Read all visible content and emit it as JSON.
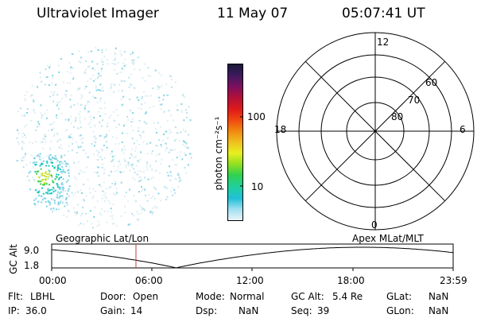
{
  "header": {
    "title": "Ultraviolet Imager",
    "date": "11 May 07",
    "time": "05:07:41 UT"
  },
  "colorbar": {
    "unit_label": "photon cm⁻²s⁻¹",
    "ticks": [
      {
        "label": "100",
        "value": 100
      },
      {
        "label": "10",
        "value": 10
      }
    ],
    "colors": [
      "#1a1a3a",
      "#3d1a5c",
      "#7a1060",
      "#b0103a",
      "#e01a1a",
      "#f04a10",
      "#f08a10",
      "#f0c020",
      "#e8f020",
      "#90e020",
      "#30d050",
      "#20d0a0",
      "#20c0d8",
      "#a0e0f0",
      "#e8f4f8"
    ]
  },
  "polar_grid": {
    "top_label": "12",
    "bottom_label": "0",
    "left_label": "18",
    "right_label": "6",
    "ring_labels": [
      "60",
      "70",
      "80"
    ]
  },
  "timeline": {
    "y_axis_label": "GC Alt",
    "y_ticks": [
      "9.0",
      "1.8"
    ],
    "left_caption": "Geographic Lat/Lon",
    "right_caption": "Apex MLat/MLT",
    "x_ticks": [
      "00:00",
      "06:00",
      "12:00",
      "18:00",
      "23:59"
    ],
    "current_time_marker": "05:07"
  },
  "status": {
    "col1": [
      {
        "label": "Flt:",
        "value": "LBHL"
      },
      {
        "label": "IP:",
        "value": "36.0"
      }
    ],
    "col2": [
      {
        "label": "Door:",
        "value": "Open"
      },
      {
        "label": "Gain:",
        "value": "14"
      }
    ],
    "col3": [
      {
        "label": "Mode:",
        "value": "Normal"
      },
      {
        "label": "Dsp:",
        "value": "NaN"
      }
    ],
    "col4": [
      {
        "label": "GC Alt:",
        "value": "5.4 Re"
      },
      {
        "label": "Seq:",
        "value": "39"
      }
    ],
    "col5": [
      {
        "label": "GLat:",
        "value": "NaN"
      },
      {
        "label": "GLon:",
        "value": "NaN"
      }
    ]
  },
  "colors": {
    "marker": "#c04040",
    "grid": "#000000",
    "background": "#ffffff"
  }
}
